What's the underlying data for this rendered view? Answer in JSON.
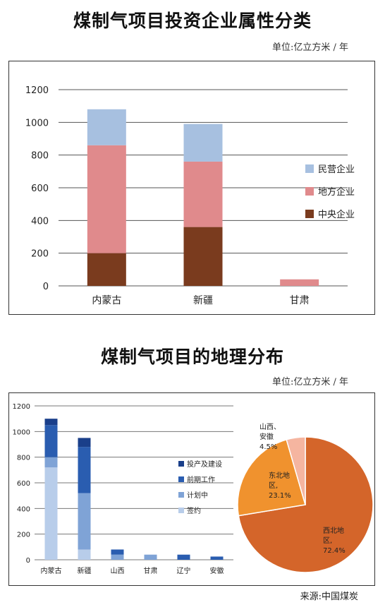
{
  "title1": "煤制气项目投资企业属性分类",
  "unit1": "单位:亿立方米 / 年",
  "title2": "煤制气项目的地理分布",
  "unit2": "单位:亿立方米 / 年",
  "source": "来源:中国煤炭",
  "chart_data": [
    {
      "type": "bar",
      "stacked": true,
      "categories": [
        "内蒙古",
        "新疆",
        "甘肃"
      ],
      "series": [
        {
          "name": "中央企业",
          "color": "#7a3b1e",
          "values": [
            200,
            360,
            0
          ]
        },
        {
          "name": "地方企业",
          "color": "#e08a8c",
          "values": [
            660,
            400,
            40
          ]
        },
        {
          "name": "民营企业",
          "color": "#a7c0e0",
          "values": [
            220,
            230,
            0
          ]
        }
      ],
      "ylim": [
        0,
        1200
      ],
      "yticks": [
        0,
        200,
        400,
        600,
        800,
        1000,
        1200
      ],
      "legend": "right",
      "grid": true
    },
    {
      "type": "bar",
      "stacked": true,
      "categories": [
        "内蒙古",
        "新疆",
        "山西",
        "甘肃",
        "辽宁",
        "安徽"
      ],
      "series": [
        {
          "name": "签约",
          "color": "#b8cdea",
          "values": [
            720,
            80,
            0,
            0,
            0,
            0
          ]
        },
        {
          "name": "计划中",
          "color": "#7fa3d6",
          "values": [
            80,
            440,
            40,
            40,
            0,
            0
          ]
        },
        {
          "name": "前期工作",
          "color": "#2a5db0",
          "values": [
            250,
            360,
            40,
            0,
            40,
            25
          ]
        },
        {
          "name": "投产及建设",
          "color": "#1a3f8a",
          "values": [
            50,
            70,
            0,
            0,
            0,
            0
          ]
        }
      ],
      "ylim": [
        0,
        1200
      ],
      "yticks": [
        0,
        200,
        400,
        600,
        800,
        1000,
        1200
      ],
      "legend": "right",
      "grid": true
    },
    {
      "type": "pie",
      "slices": [
        {
          "label": [
            "西北地",
            "区,",
            "72.4%"
          ],
          "value": 72.4,
          "color": "#d4652a"
        },
        {
          "label": [
            "东北地",
            "区,",
            "23.1%"
          ],
          "value": 23.1,
          "color": "#f0922e"
        },
        {
          "label": [
            "山西、",
            "安徽",
            "4.5%"
          ],
          "value": 4.5,
          "color": "#f5b5a0"
        }
      ]
    }
  ]
}
